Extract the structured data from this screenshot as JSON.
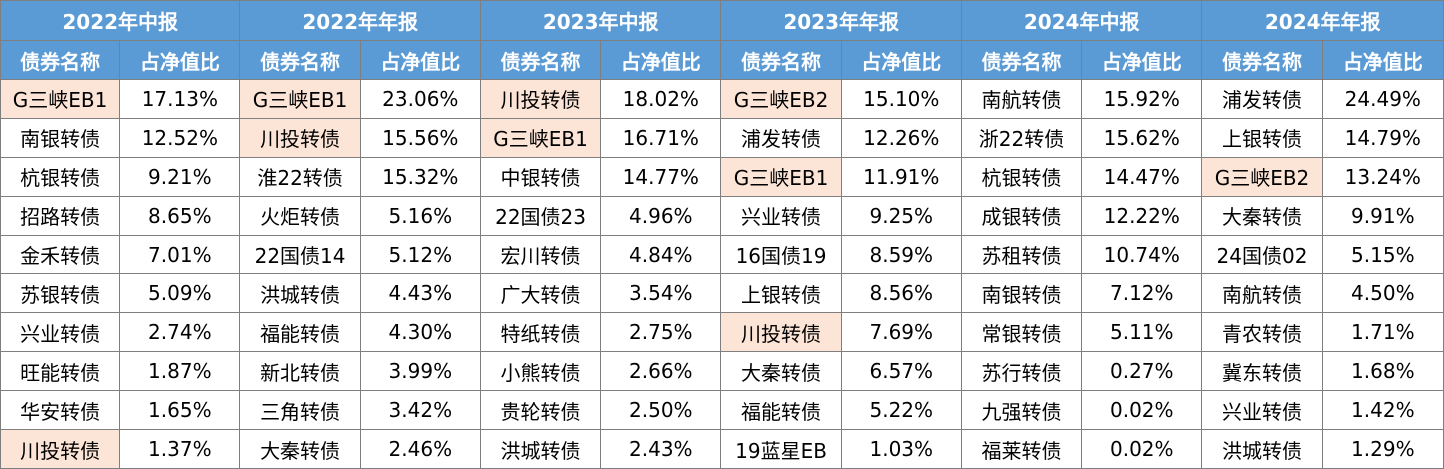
{
  "colors": {
    "header_bg": "#5b9bd5",
    "header_text": "#ffffff",
    "highlight_bg": "#fce4d6",
    "border": "#7f7f7f"
  },
  "chart_data": {
    "type": "table",
    "sub_headers": [
      "债券名称",
      "占净值比"
    ],
    "periods": [
      {
        "label": "2022年中报",
        "rows": [
          {
            "name": "G三峡EB1",
            "pct": "17.13%",
            "hl": true
          },
          {
            "name": "南银转债",
            "pct": "12.52%",
            "hl": false
          },
          {
            "name": "杭银转债",
            "pct": "9.21%",
            "hl": false
          },
          {
            "name": "招路转债",
            "pct": "8.65%",
            "hl": false
          },
          {
            "name": "金禾转债",
            "pct": "7.01%",
            "hl": false
          },
          {
            "name": "苏银转债",
            "pct": "5.09%",
            "hl": false
          },
          {
            "name": "兴业转债",
            "pct": "2.74%",
            "hl": false
          },
          {
            "name": "旺能转债",
            "pct": "1.87%",
            "hl": false
          },
          {
            "name": "华安转债",
            "pct": "1.65%",
            "hl": false
          },
          {
            "name": "川投转债",
            "pct": "1.37%",
            "hl": true
          }
        ]
      },
      {
        "label": "2022年年报",
        "rows": [
          {
            "name": "G三峡EB1",
            "pct": "23.06%",
            "hl": true
          },
          {
            "name": "川投转债",
            "pct": "15.56%",
            "hl": true
          },
          {
            "name": "淮22转债",
            "pct": "15.32%",
            "hl": false
          },
          {
            "name": "火炬转债",
            "pct": "5.16%",
            "hl": false
          },
          {
            "name": "22国债14",
            "pct": "5.12%",
            "hl": false
          },
          {
            "name": "洪城转债",
            "pct": "4.43%",
            "hl": false
          },
          {
            "name": "福能转债",
            "pct": "4.30%",
            "hl": false
          },
          {
            "name": "新北转债",
            "pct": "3.99%",
            "hl": false
          },
          {
            "name": "三角转债",
            "pct": "3.42%",
            "hl": false
          },
          {
            "name": "大秦转债",
            "pct": "2.46%",
            "hl": false
          }
        ]
      },
      {
        "label": "2023年中报",
        "rows": [
          {
            "name": "川投转债",
            "pct": "18.02%",
            "hl": true
          },
          {
            "name": "G三峡EB1",
            "pct": "16.71%",
            "hl": true
          },
          {
            "name": "中银转债",
            "pct": "14.77%",
            "hl": false
          },
          {
            "name": "22国债23",
            "pct": "4.96%",
            "hl": false
          },
          {
            "name": "宏川转债",
            "pct": "4.84%",
            "hl": false
          },
          {
            "name": "广大转债",
            "pct": "3.54%",
            "hl": false
          },
          {
            "name": "特纸转债",
            "pct": "2.75%",
            "hl": false
          },
          {
            "name": "小熊转债",
            "pct": "2.66%",
            "hl": false
          },
          {
            "name": "贵轮转债",
            "pct": "2.50%",
            "hl": false
          },
          {
            "name": "洪城转债",
            "pct": "2.43%",
            "hl": false
          }
        ]
      },
      {
        "label": "2023年年报",
        "rows": [
          {
            "name": "G三峡EB2",
            "pct": "15.10%",
            "hl": true
          },
          {
            "name": "浦发转债",
            "pct": "12.26%",
            "hl": false
          },
          {
            "name": "G三峡EB1",
            "pct": "11.91%",
            "hl": true
          },
          {
            "name": "兴业转债",
            "pct": "9.25%",
            "hl": false
          },
          {
            "name": "16国债19",
            "pct": "8.59%",
            "hl": false
          },
          {
            "name": "上银转债",
            "pct": "8.56%",
            "hl": false
          },
          {
            "name": "川投转债",
            "pct": "7.69%",
            "hl": true
          },
          {
            "name": "大秦转债",
            "pct": "6.57%",
            "hl": false
          },
          {
            "name": "福能转债",
            "pct": "5.22%",
            "hl": false
          },
          {
            "name": "19蓝星EB",
            "pct": "1.03%",
            "hl": false
          }
        ]
      },
      {
        "label": "2024年中报",
        "rows": [
          {
            "name": "南航转债",
            "pct": "15.92%",
            "hl": false
          },
          {
            "name": "浙22转债",
            "pct": "15.62%",
            "hl": false
          },
          {
            "name": "杭银转债",
            "pct": "14.47%",
            "hl": false
          },
          {
            "name": "成银转债",
            "pct": "12.22%",
            "hl": false
          },
          {
            "name": "苏租转债",
            "pct": "10.74%",
            "hl": false
          },
          {
            "name": "南银转债",
            "pct": "7.12%",
            "hl": false
          },
          {
            "name": "常银转债",
            "pct": "5.11%",
            "hl": false
          },
          {
            "name": "苏行转债",
            "pct": "0.27%",
            "hl": false
          },
          {
            "name": "九强转债",
            "pct": "0.02%",
            "hl": false
          },
          {
            "name": "福莱转债",
            "pct": "0.02%",
            "hl": false
          }
        ]
      },
      {
        "label": "2024年年报",
        "rows": [
          {
            "name": "浦发转债",
            "pct": "24.49%",
            "hl": false
          },
          {
            "name": "上银转债",
            "pct": "14.79%",
            "hl": false
          },
          {
            "name": "G三峡EB2",
            "pct": "13.24%",
            "hl": true
          },
          {
            "name": "大秦转债",
            "pct": "9.91%",
            "hl": false
          },
          {
            "name": "24国债02",
            "pct": "5.15%",
            "hl": false
          },
          {
            "name": "南航转债",
            "pct": "4.50%",
            "hl": false
          },
          {
            "name": "青农转债",
            "pct": "1.71%",
            "hl": false
          },
          {
            "name": "冀东转债",
            "pct": "1.68%",
            "hl": false
          },
          {
            "name": "兴业转债",
            "pct": "1.42%",
            "hl": false
          },
          {
            "name": "洪城转债",
            "pct": "1.29%",
            "hl": false
          }
        ]
      }
    ]
  }
}
